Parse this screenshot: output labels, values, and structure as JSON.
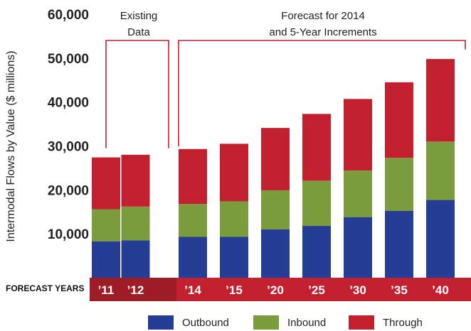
{
  "chart_data": {
    "type": "bar",
    "stacked": true,
    "categories": [
      "'11",
      "'12",
      "'14",
      "'15",
      "'20",
      "'25",
      "'30",
      "'35",
      "'40"
    ],
    "series": [
      {
        "name": "Outbound",
        "color": "#263d96",
        "values": [
          8300,
          8500,
          9300,
          9300,
          11000,
          11800,
          13800,
          15200,
          17700
        ]
      },
      {
        "name": "Inbound",
        "color": "#7a9c3c",
        "values": [
          7300,
          7700,
          7500,
          8100,
          8900,
          10300,
          10600,
          12100,
          13300
        ]
      },
      {
        "name": "Through",
        "color": "#c2202f",
        "values": [
          11800,
          11800,
          12500,
          13100,
          14200,
          15200,
          16300,
          17200,
          18800
        ]
      }
    ],
    "ylabel": "Intermodal Flows by Value ($ millions)",
    "ylim": [
      0,
      60000
    ],
    "yticks": [
      "10,000",
      "20,000",
      "30,000",
      "40,000",
      "50,000",
      "60,000"
    ],
    "ytick_values": [
      10000,
      20000,
      30000,
      40000,
      50000,
      60000
    ],
    "grid": false,
    "legend_position": "bottom",
    "annotations": {
      "existing": [
        "Existing",
        "Data"
      ],
      "forecast": [
        "Forecast for 2014",
        "and 5-Year Increments"
      ]
    },
    "forecast_band_label": "FORECAST YEARS",
    "band_colors": {
      "existing": "#9e1c26",
      "forecast": "#c2202f"
    },
    "bracket_color": "#c2202f"
  }
}
